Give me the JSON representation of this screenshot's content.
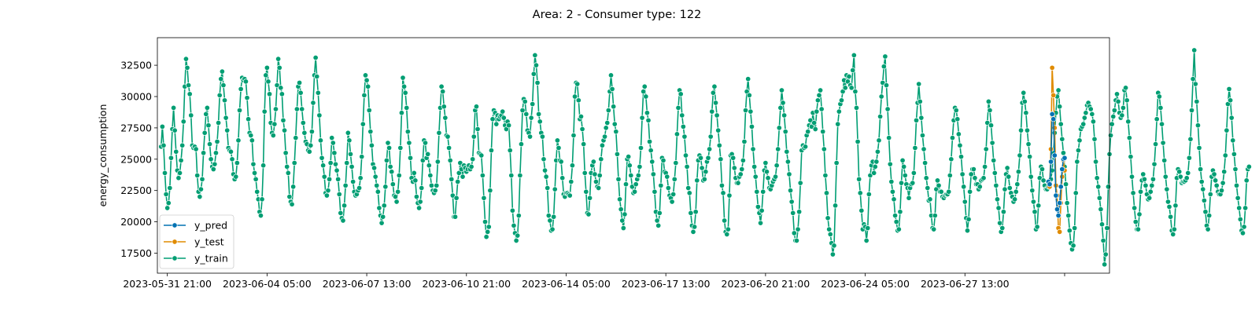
{
  "chart_data": {
    "type": "line",
    "title": "Area: 2 - Consumer type: 122",
    "xlabel": "",
    "ylabel": "energy_consumption",
    "y_ticks": [
      17500,
      20000,
      22500,
      25000,
      27500,
      30000,
      32500
    ],
    "y_tick_labels": [
      "17500",
      "20000",
      "22500",
      "25000",
      "27500",
      "30000",
      "32500"
    ],
    "ylim": [
      15900,
      34700
    ],
    "x_tick_labels": [
      "2023-05-31 21:00",
      "2023-06-04 05:00",
      "2023-06-07 13:00",
      "2023-06-10 21:00",
      "2023-06-14 05:00",
      "2023-06-17 13:00",
      "2023-06-20 21:00",
      "2023-06-24 05:00",
      "2023-06-27 13:00"
    ],
    "xlim": [
      "2023-05-31 13:00",
      "2023-07-02 09:00"
    ],
    "grid": false,
    "legend_placement": "lower left",
    "series": [
      {
        "name": "y_pred",
        "color": "#0072b2",
        "x_start": "2023-06-30 08:00",
        "x_step_hours": 1,
        "values": [
          23200,
          23000,
          24800,
          28600,
          28200,
          25300,
          22100,
          21000,
          20500,
          21500,
          22800,
          24200,
          25000,
          25100
        ]
      },
      {
        "name": "y_test",
        "color": "#e08b00",
        "x_start": "2023-06-30 08:00",
        "x_step_hours": 1,
        "values": [
          23200,
          22800,
          25800,
          32300,
          30100,
          27500,
          22900,
          22100,
          19500,
          19200,
          21500,
          23600,
          24900,
          24100
        ]
      },
      {
        "name": "y_train",
        "color": "#009e73",
        "x_start": "2023-05-31 16:00",
        "x_step_hours": 1,
        "values": [
          26000,
          27600,
          26100,
          23900,
          22200,
          21100,
          21500,
          22700,
          25100,
          27400,
          29100,
          27300,
          25600,
          24100,
          23500,
          23900,
          24900,
          26100,
          28000,
          30800,
          33000,
          32300,
          30900,
          30200,
          28500,
          26100,
          25900,
          26000,
          25800,
          23700,
          22400,
          22000,
          22600,
          23400,
          25500,
          27100,
          28600,
          29100,
          27700,
          26200,
          25000,
          24400,
          24200,
          24600,
          25500,
          26400,
          27900,
          30100,
          31400,
          32000,
          30900,
          29700,
          28300,
          27300,
          25900,
          25700,
          25600,
          25000,
          23800,
          23400,
          23600,
          24700,
          26500,
          28900,
          30600,
          31500,
          31300,
          31400,
          31200,
          29900,
          28200,
          27100,
          26900,
          26500,
          24600,
          23900,
          23400,
          22400,
          21800,
          20800,
          20500,
          21800,
          24500,
          28800,
          31700,
          32300,
          31200,
          30200,
          27900,
          27100,
          26900,
          27800,
          29000,
          30900,
          33000,
          32300,
          30700,
          30200,
          28100,
          27300,
          25500,
          24400,
          23900,
          22000,
          21600,
          21400,
          22800,
          24700,
          26700,
          29000,
          30800,
          31100,
          30300,
          29000,
          27900,
          27100,
          26400,
          26200,
          25700,
          25600,
          26100,
          27200,
          29500,
          31700,
          33100,
          31600,
          30300,
          28500,
          26500,
          25100,
          24500,
          23600,
          22300,
          22100,
          22500,
          23400,
          24700,
          26700,
          26300,
          25500,
          24600,
          24100,
          23400,
          22200,
          20700,
          20300,
          20100,
          21300,
          22900,
          24700,
          27100,
          26500,
          25400,
          24400,
          23200,
          22400,
          22100,
          22200,
          22500,
          22700,
          23500,
          25200,
          27800,
          30100,
          31700,
          31300,
          30800,
          28900,
          27200,
          26100,
          24600,
          24300,
          23600,
          22900,
          22400,
          21100,
          20500,
          19900,
          20400,
          21300,
          22800,
          24900,
          26300,
          25900,
          24400,
          24000,
          23000,
          22100,
          22000,
          21600,
          22400,
          23700,
          25900,
          28700,
          31500,
          30800,
          30300,
          29100,
          27200,
          26300,
          25100,
          23500,
          23200,
          23900,
          23300,
          22000,
          21500,
          21100,
          21600,
          22700,
          24900,
          26500,
          26300,
          25100,
          25400,
          24500,
          23700,
          22900,
          22500,
          22300,
          22500,
          22900,
          24800,
          27100,
          29100,
          30800,
          30400,
          29200,
          28300,
          26900,
          26800,
          25900,
          24900,
          23400,
          22100,
          20400,
          20400,
          21900,
          23200,
          23900,
          24700,
          24200,
          23600,
          24500,
          24300,
          24000,
          24200,
          24500,
          24200,
          24400,
          25000,
          26800,
          28900,
          29200,
          27400,
          25500,
          25400,
          25300,
          23700,
          21900,
          20000,
          18800,
          19200,
          19600,
          22500,
          25700,
          28200,
          28900,
          28700,
          27800,
          28500,
          28200,
          28400,
          28500,
          28800,
          28300,
          27700,
          27400,
          28000,
          27700,
          25700,
          23700,
          20900,
          19700,
          19100,
          18500,
          18900,
          20500,
          23700,
          26200,
          28900,
          29800,
          29600,
          28600,
          27300,
          27100,
          26800,
          28300,
          29400,
          31800,
          33300,
          32500,
          31100,
          28600,
          28000,
          27100,
          26800,
          25000,
          24100,
          23600,
          22700,
          20500,
          20100,
          19300,
          19400,
          20400,
          22600,
          24900,
          26500,
          25900,
          24900,
          24800,
          23500,
          22200,
          22000,
          22300,
          22300,
          22200,
          22100,
          23200,
          24500,
          26900,
          30000,
          31100,
          31000,
          29700,
          28200,
          28400,
          27400,
          26200,
          23900,
          22400,
          20700,
          20600,
          21900,
          23900,
          24500,
          24800,
          23800,
          23200,
          22800,
          22700,
          23700,
          25000,
          26100,
          26500,
          26800,
          27500,
          27900,
          28900,
          30400,
          31700,
          30600,
          29200,
          27800,
          27200,
          25400,
          23400,
          21800,
          21000,
          20100,
          19500,
          20600,
          23000,
          25000,
          25200,
          24500,
          23700,
          22800,
          22300,
          22400,
          23000,
          23400,
          23700,
          24400,
          25900,
          28300,
          30400,
          30800,
          30000,
          28700,
          28100,
          26400,
          25700,
          24800,
          23800,
          22400,
          20800,
          20100,
          19700,
          20700,
          22900,
          25100,
          24900,
          24000,
          23900,
          23600,
          22700,
          22100,
          21900,
          21600,
          22200,
          23400,
          24700,
          27000,
          29100,
          30500,
          30200,
          28500,
          27600,
          26800,
          25300,
          24400,
          22700,
          22300,
          20700,
          19700,
          19200,
          19600,
          20800,
          23300,
          24900,
          25300,
          25100,
          24300,
          23300,
          23400,
          24000,
          24800,
          25100,
          25800,
          26800,
          28800,
          30300,
          30800,
          29500,
          28500,
          27300,
          26100,
          25000,
          22900,
          22300,
          20100,
          19200,
          19000,
          19400,
          22100,
          25300,
          25400,
          25100,
          24300,
          23500,
          23100,
          23100,
          23600,
          23800,
          24200,
          24900,
          26400,
          28900,
          30400,
          31400,
          30100,
          28800,
          27600,
          25800,
          24400,
          23600,
          22400,
          21200,
          20700,
          19900,
          20900,
          22400,
          24100,
          24700,
          24000,
          23500,
          22700,
          22600,
          22900,
          23200,
          23400,
          23600,
          24500,
          25800,
          27500,
          29100,
          30500,
          29500,
          28500,
          27200,
          25600,
          24800,
          23800,
          22500,
          21600,
          20700,
          19100,
          18500,
          18500,
          19400,
          20800,
          23100,
          25700,
          26100,
          25900,
          26000,
          26900,
          27200,
          27700,
          28100,
          27600,
          28700,
          27900,
          27400,
          28800,
          29700,
          30100,
          30500,
          29000,
          27200,
          25800,
          23700,
          22300,
          20300,
          19400,
          19000,
          18300,
          17400,
          18100,
          21300,
          24700,
          27800,
          28800,
          29400,
          29700,
          30400,
          31300,
          30700,
          31700,
          31200,
          31600,
          30900,
          30700,
          32100,
          33300,
          30400,
          29100,
          26400,
          23400,
          22300,
          20900,
          19400,
          19800,
          19600,
          18500,
          19500,
          22200,
          23700,
          24500,
          24800,
          23900,
          24400,
          24800,
          25600,
          26500,
          28400,
          30000,
          31100,
          32400,
          33200,
          30900,
          29000,
          26700,
          24600,
          23200,
          22400,
          21800,
          20500,
          20000,
          19300,
          19400,
          20800,
          23100,
          24900,
          24400,
          23700,
          23000,
          22700,
          21900,
          22700,
          23000,
          23100,
          23900,
          25900,
          28100,
          29500,
          31000,
          29600,
          28300,
          26900,
          25800,
          24700,
          23500,
          22700,
          21700,
          21800,
          20500,
          19500,
          19400,
          20500,
          22600,
          23300,
          22900,
          22400,
          22400,
          22000,
          21900,
          22100,
          22200,
          22200,
          22400,
          23700,
          25000,
          26700,
          28100,
          29100,
          28900,
          28200,
          27000,
          26100,
          25200,
          23800,
          22800,
          21600,
          20300,
          19300,
          20200,
          22400,
          23800,
          24200,
          24200,
          23500,
          23000,
          23000,
          22600,
          22800,
          23300,
          23400,
          23500,
          24400,
          25800,
          27900,
          29600,
          28900,
          27700,
          26300,
          24900,
          23900,
          22900,
          21800,
          21100,
          19900,
          19200,
          19500,
          20800,
          22600,
          23800,
          24300,
          23600,
          22700,
          22300,
          22000,
          21600,
          21800,
          22400,
          23000,
          24000,
          25300,
          27300,
          29500,
          30300,
          29600,
          28700,
          27300,
          26200,
          25200,
          23600,
          22500,
          21600,
          20800,
          19400,
          19600,
          21300,
          23500,
          24400,
          24200,
          23300,
          22900,
          22600,
          22600,
          22800,
          23200,
          23400,
          24100,
          25500,
          27100,
          28700,
          30000,
          30500,
          29200,
          27800,
          26600,
          25500,
          24400,
          23000,
          21500,
          20500,
          19300,
          18300,
          17800,
          18100,
          19500,
          22300,
          24800,
          25700,
          26500,
          27400,
          27600,
          27800,
          28300,
          28700,
          29300,
          29500,
          29200,
          29000,
          28600,
          28000,
          26600,
          24800,
          23500,
          22800,
          21900,
          21000,
          19800,
          18500,
          16600,
          17400,
          19500,
          22800,
          25400,
          26900,
          27800,
          28400,
          28900,
          29700,
          30200,
          29600,
          28700,
          28300,
          28500,
          29100,
          30500,
          30700,
          29700,
          28000,
          26700,
          25200,
          23600,
          22300,
          21100,
          20000,
          19400,
          19400,
          20600,
          22400,
          23300,
          23800,
          23400,
          22900,
          22200,
          21800,
          21900,
          22400,
          22900,
          23400,
          24600,
          26200,
          28200,
          30300,
          30000,
          29100,
          27800,
          26300,
          24900,
          23600,
          22600,
          21600,
          21200,
          20400,
          19300,
          19000,
          19400,
          21300,
          23500,
          24200,
          24000,
          23600,
          23100,
          23200,
          23200,
          23300,
          23500,
          23900,
          25100,
          26600,
          28900,
          31400,
          33700,
          31000,
          29600,
          27700,
          25900,
          24200,
          23200,
          22600,
          21700,
          20800,
          19700,
          19400,
          20500,
          22200,
          23600,
          24100,
          23800,
          23300,
          22900,
          22400,
          22200,
          22200,
          22500,
          23100,
          24000,
          25300,
          27300,
          29400,
          30600,
          29700,
          28300,
          26500,
          25400,
          24200,
          22900,
          21900,
          21100,
          20200,
          19300,
          19100,
          19600,
          21100,
          23300,
          24200,
          24400
        ]
      }
    ]
  }
}
